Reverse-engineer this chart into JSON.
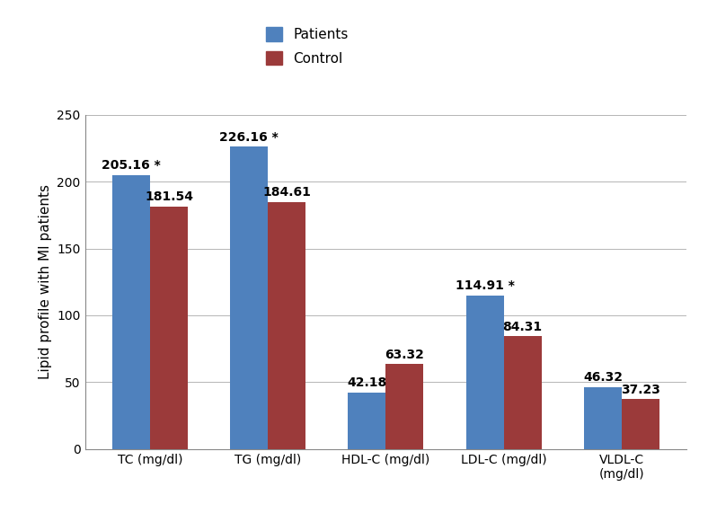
{
  "categories": [
    "TC (mg/dl)",
    "TG (mg/dl)",
    "HDL-C (mg/dl)",
    "LDL-C (mg/dl)",
    "VLDL-C\n(mg/dl)"
  ],
  "patients": [
    205.16,
    226.16,
    42.18,
    114.91,
    46.32
  ],
  "control": [
    181.54,
    184.61,
    63.32,
    84.31,
    37.23
  ],
  "patients_label": [
    "205.16 *",
    "226.16 *",
    "42.18",
    "114.91 *",
    "46.32"
  ],
  "control_label": [
    "181.54",
    "184.61",
    "63.32",
    "84.31",
    "37.23"
  ],
  "patients_color": "#4F81BD",
  "control_color": "#9B3A3A",
  "ylabel": "Lipid profile with MI patients",
  "ylim": [
    0,
    250
  ],
  "yticks": [
    0,
    50,
    100,
    150,
    200,
    250
  ],
  "legend_patients": "Patients",
  "legend_control": "Control",
  "bar_width": 0.32,
  "label_fontsize": 10,
  "axis_label_fontsize": 11,
  "tick_fontsize": 10,
  "legend_fontsize": 11
}
